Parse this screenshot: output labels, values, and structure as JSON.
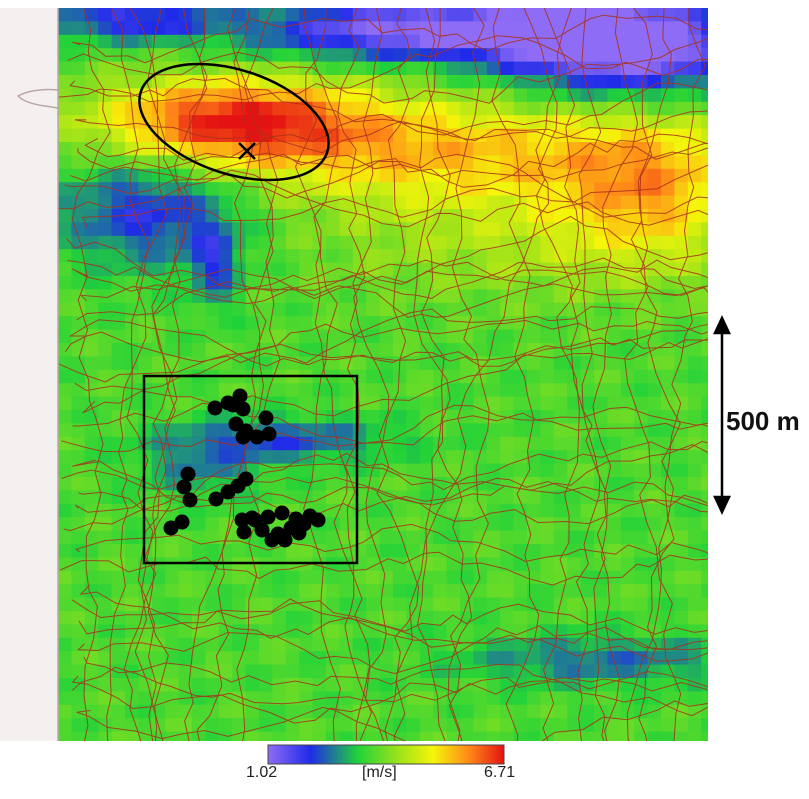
{
  "scale_bar": {
    "label": "500 m"
  },
  "colorbar": {
    "min_label": "1.02",
    "unit_label": "[m/s]",
    "max_label": "6.71",
    "min_value": 1.02,
    "max_value": 6.71,
    "colors": [
      "#8f6cf5",
      "#1f2be8",
      "#20d23a",
      "#7ee01c",
      "#f5f50a",
      "#ff8a18",
      "#e41212"
    ]
  },
  "colors": {
    "contour": "#a8301c",
    "marker": "#000000",
    "coast": "#b9a7a7"
  },
  "markers": {
    "count": 36
  }
}
